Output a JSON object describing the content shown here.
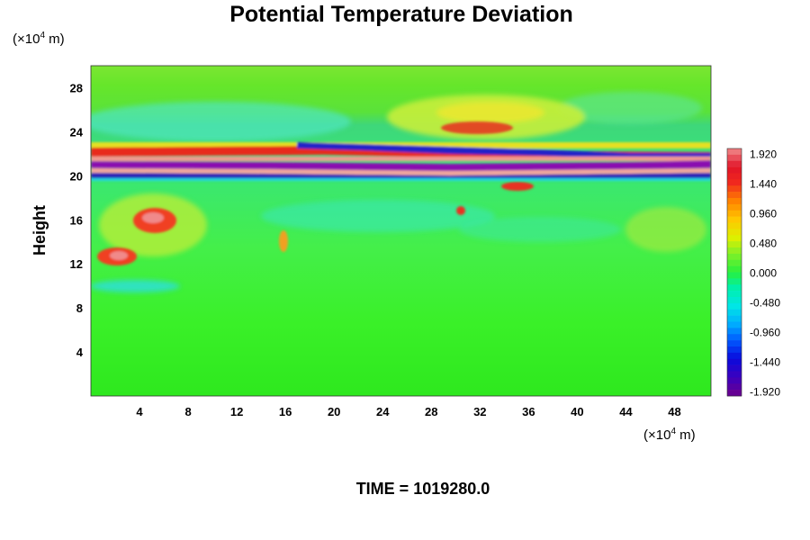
{
  "chart_data": {
    "type": "heatmap",
    "title": "Potential Temperature Deviation",
    "ylabel": "Height",
    "xunit": {
      "prefix": "(×10",
      "exp": "4",
      "suffix": " m)"
    },
    "yunit": {
      "prefix": "(×10",
      "exp": "4",
      "suffix": " m)"
    },
    "xlim": [
      0,
      51
    ],
    "ylim": [
      0,
      30
    ],
    "xticks": [
      4,
      8,
      12,
      16,
      20,
      24,
      28,
      32,
      36,
      40,
      44,
      48
    ],
    "yticks": [
      4,
      8,
      12,
      16,
      20,
      24,
      28
    ],
    "colorbar": {
      "vmin": -2.0,
      "vmax": 2.0,
      "tick_values": [
        1.92,
        1.44,
        0.96,
        0.48,
        0.0,
        -0.48,
        -0.96,
        -1.44,
        -1.92
      ],
      "tick_labels": [
        "1.920",
        "1.440",
        "0.960",
        "0.480",
        "0.000",
        "-0.480",
        "-0.960",
        "-1.440",
        "-1.920"
      ]
    },
    "field_features": [
      {
        "name": "warm band upper",
        "x": [
          0,
          51
        ],
        "y": 21.6,
        "value": 1.9
      },
      {
        "name": "cold band",
        "x": [
          0,
          51
        ],
        "y": 20.9,
        "value": -1.9
      },
      {
        "name": "warm band lower",
        "x": [
          0,
          51
        ],
        "y": 20.2,
        "value": 1.9
      },
      {
        "name": "cold band lower",
        "x": [
          0,
          51
        ],
        "y": 19.6,
        "value": -1.5
      },
      {
        "name": "upper cold layer",
        "x": [
          18,
          44
        ],
        "y": 22.8,
        "value": -1.6
      },
      {
        "name": "left warm patch",
        "x": [
          3,
          7
        ],
        "y": 16.3,
        "value": 1.6
      },
      {
        "name": "left warm patch 2",
        "x": [
          0,
          4
        ],
        "y": 12.5,
        "value": 1.5
      },
      {
        "name": "upper warm rays",
        "x": [
          28,
          40
        ],
        "y": 25.0,
        "value": 0.9
      },
      {
        "name": "upper cool region",
        "x": [
          0,
          18
        ],
        "y": 25.0,
        "value": -0.4
      }
    ],
    "time_label": "TIME = 1019280.0"
  }
}
